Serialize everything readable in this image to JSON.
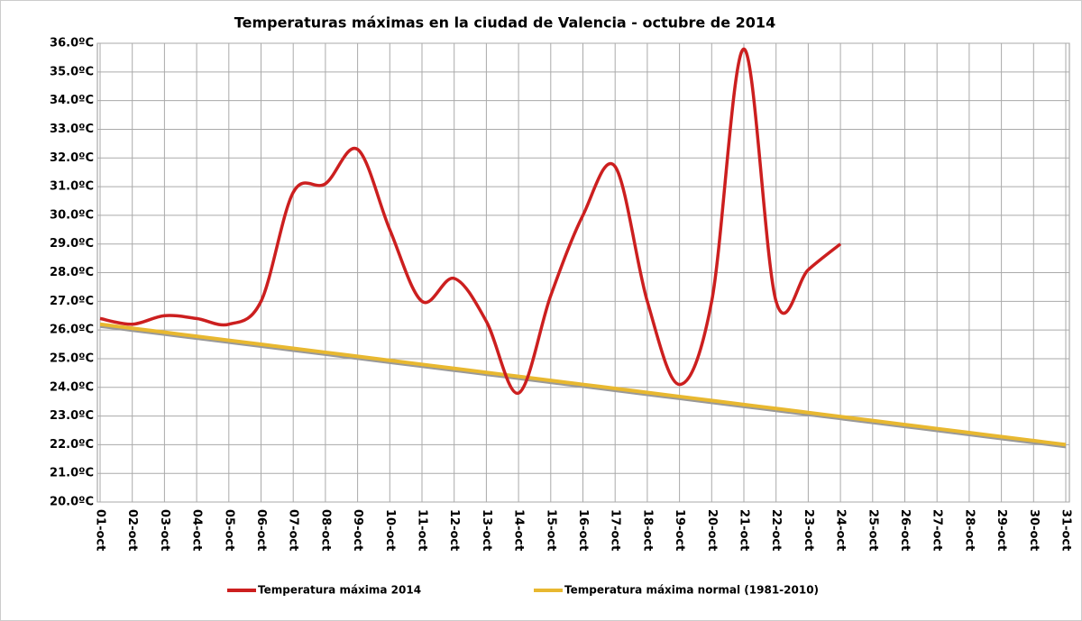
{
  "chart_data": {
    "type": "line",
    "title": "Temperaturas máximas en la ciudad de Valencia - octubre de 2014",
    "categories": [
      "01-oct",
      "02-oct",
      "03-oct",
      "04-oct",
      "05-oct",
      "06-oct",
      "07-oct",
      "08-oct",
      "09-oct",
      "10-oct",
      "11-oct",
      "12-oct",
      "13-oct",
      "14-oct",
      "15-oct",
      "16-oct",
      "17-oct",
      "18-oct",
      "19-oct",
      "20-oct",
      "21-oct",
      "22-oct",
      "23-oct",
      "24-oct",
      "25-oct",
      "26-oct",
      "27-oct",
      "28-oct",
      "29-oct",
      "30-oct",
      "31-oct"
    ],
    "series": [
      {
        "name": "Temperatura máxima 2014",
        "color": "#cc1f1f",
        "values": [
          26.4,
          26.2,
          26.5,
          26.4,
          26.2,
          27.0,
          30.8,
          31.1,
          32.3,
          29.5,
          27.0,
          27.8,
          26.3,
          23.8,
          27.2,
          30.0,
          31.7,
          27.0,
          24.1,
          27.0,
          35.8,
          27.0,
          28.1,
          29.0,
          null,
          null,
          null,
          null,
          null,
          null,
          null
        ]
      },
      {
        "name": "Temperatura máxima normal (1981-2010)",
        "color": "#e8b830",
        "values": [
          26.2,
          26.06,
          25.92,
          25.78,
          25.64,
          25.5,
          25.36,
          25.22,
          25.08,
          24.94,
          24.8,
          24.66,
          24.52,
          24.38,
          24.24,
          24.1,
          23.96,
          23.82,
          23.68,
          23.54,
          23.4,
          23.26,
          23.12,
          22.98,
          22.84,
          22.7,
          22.56,
          22.42,
          22.28,
          22.14,
          22.0
        ]
      }
    ],
    "ylim": [
      20,
      36
    ],
    "yticks": [
      {
        "value": 20,
        "label": "20.0ºC"
      },
      {
        "value": 21,
        "label": "21.0ºC"
      },
      {
        "value": 22,
        "label": "22.0ºC"
      },
      {
        "value": 23,
        "label": "23.0ºC"
      },
      {
        "value": 24,
        "label": "24.0ºC"
      },
      {
        "value": 25,
        "label": "25.0ºC"
      },
      {
        "value": 26,
        "label": "26.0ºC"
      },
      {
        "value": 27,
        "label": "27.0ºC"
      },
      {
        "value": 28,
        "label": "28.0ºC"
      },
      {
        "value": 29,
        "label": "29.0ºC"
      },
      {
        "value": 30,
        "label": "30.0ºC"
      },
      {
        "value": 31,
        "label": "31.0ºC"
      },
      {
        "value": 32,
        "label": "32.0ºC"
      },
      {
        "value": 33,
        "label": "33.0ºC"
      },
      {
        "value": 34,
        "label": "34.0ºC"
      },
      {
        "value": 35,
        "label": "35.0ºC"
      },
      {
        "value": 36,
        "label": "36.0ºC"
      }
    ],
    "grid": true
  }
}
